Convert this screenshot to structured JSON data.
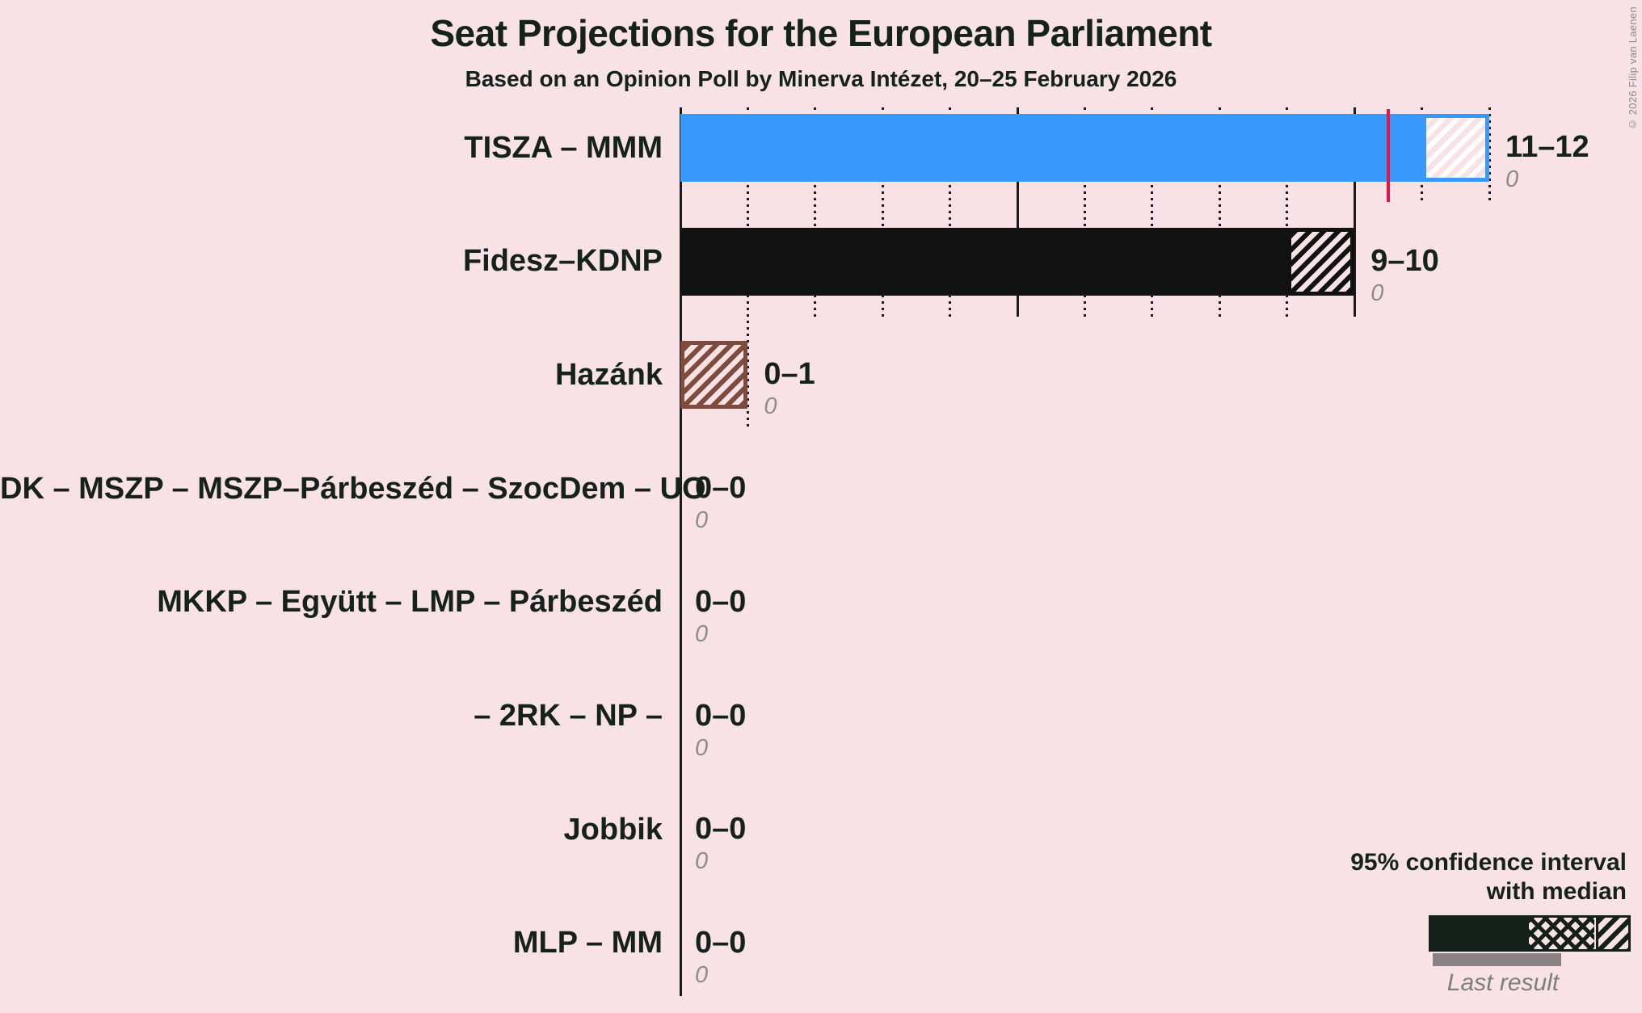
{
  "title": "Seat Projections for the European Parliament",
  "subtitle": "Based on an Opinion Poll by Minerva Intézet, 20–25 February 2026",
  "copyright": "© 2026 Filip van Laenen",
  "legend": {
    "ci_line1": "95% confidence interval",
    "ci_line2": "with median",
    "last_result_label": "Last result"
  },
  "colors": {
    "background": "#F9E2E6",
    "axis": "#1A1A1A",
    "majority_line": "#E01848",
    "text_dark": "#15211B",
    "text_gray": "#8B8B8B",
    "last_result_bar": "#8A8185",
    "legend_dark": "#14211B"
  },
  "chart_data": {
    "type": "bar",
    "orientation": "horizontal",
    "unit": "seats",
    "x_axis": {
      "min": 0,
      "max": 12,
      "tick_step": 1,
      "solid_ticks": [
        0,
        5,
        10
      ]
    },
    "majority_threshold_seats": 10.5,
    "rows": [
      {
        "party": "TISZA – MMM",
        "ci_low": 11,
        "ci_high": 12,
        "range_label": "11–12",
        "last_result": "0",
        "color": "#3899FB",
        "stripe": "#FFFFFF"
      },
      {
        "party": "Fidesz–KDNP",
        "ci_low": 9,
        "ci_high": 10,
        "range_label": "9–10",
        "last_result": "0",
        "color": "#121212",
        "stripe": "#121212"
      },
      {
        "party": "Hazánk",
        "ci_low": 0,
        "ci_high": 1,
        "range_label": "0–1",
        "last_result": "0",
        "color": "#7D4C3C",
        "stripe": "#7D4C3C"
      },
      {
        "party": "DK – MSZP – MSZP–Párbeszéd – SzocDem – UO",
        "ci_low": 0,
        "ci_high": 0,
        "range_label": "0–0",
        "last_result": "0",
        "color": null,
        "stripe": null
      },
      {
        "party": "MKKP – Együtt – LMP – Párbeszéd",
        "ci_low": 0,
        "ci_high": 0,
        "range_label": "0–0",
        "last_result": "0",
        "color": null,
        "stripe": null
      },
      {
        "party": "– 2RK – NP –",
        "ci_low": 0,
        "ci_high": 0,
        "range_label": "0–0",
        "last_result": "0",
        "color": null,
        "stripe": null
      },
      {
        "party": "Jobbik",
        "ci_low": 0,
        "ci_high": 0,
        "range_label": "0–0",
        "last_result": "0",
        "color": null,
        "stripe": null
      },
      {
        "party": "MLP – MM",
        "ci_low": 0,
        "ci_high": 0,
        "range_label": "0–0",
        "last_result": "0",
        "color": null,
        "stripe": null
      }
    ]
  }
}
